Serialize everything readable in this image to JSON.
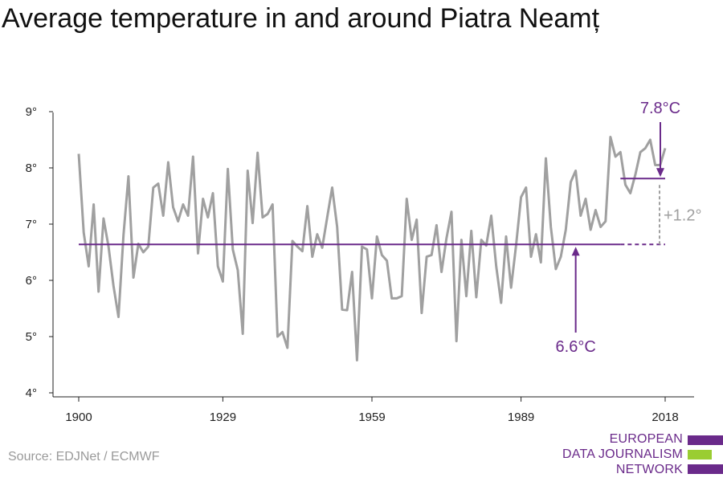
{
  "title": "Average temperature in and around Piatra Neamț",
  "source": "Source: EDJNet / ECMWF",
  "logo": {
    "lines": [
      "EUROPEAN",
      "DATA JOURNALISM",
      "NETWORK"
    ],
    "colors": [
      "#6a2a8a",
      "#9acd32",
      "#6a2a8a"
    ]
  },
  "colors": {
    "series": "#a0a0a0",
    "accent": "#6a2a8a",
    "diff": "#a0a0a0"
  },
  "chart_data": {
    "type": "line",
    "title": "Average temperature in and around Piatra Neamț",
    "xlabel": "",
    "ylabel": "",
    "xlim": [
      1900,
      2018
    ],
    "ylim": [
      4,
      9
    ],
    "x_ticks": [
      1900,
      1929,
      1959,
      1989,
      2018
    ],
    "y_ticks": [
      4,
      5,
      6,
      7,
      8,
      9
    ],
    "y_tick_labels": [
      "4°",
      "5°",
      "6°",
      "7°",
      "8°",
      "9°"
    ],
    "grid": false,
    "series": [
      {
        "x": [
          1900,
          1901,
          1902,
          1903,
          1904,
          1905,
          1906,
          1907,
          1908,
          1909,
          1910,
          1911,
          1912,
          1913,
          1914,
          1915,
          1916,
          1917,
          1918,
          1919,
          1920,
          1921,
          1922,
          1923,
          1924,
          1925,
          1926,
          1927,
          1928,
          1929,
          1930,
          1931,
          1932,
          1933,
          1934,
          1935,
          1936,
          1937,
          1938,
          1939,
          1940,
          1941,
          1942,
          1943,
          1944,
          1945,
          1946,
          1947,
          1948,
          1949,
          1950,
          1951,
          1952,
          1953,
          1954,
          1955,
          1956,
          1957,
          1958,
          1959,
          1960,
          1961,
          1962,
          1963,
          1964,
          1965,
          1966,
          1967,
          1968,
          1969,
          1970,
          1971,
          1972,
          1973,
          1974,
          1975,
          1976,
          1977,
          1978,
          1979,
          1980,
          1981,
          1982,
          1983,
          1984,
          1985,
          1986,
          1987,
          1988,
          1989,
          1990,
          1991,
          1992,
          1993,
          1994,
          1995,
          1996,
          1997,
          1998,
          1999,
          2000,
          2001,
          2002,
          2003,
          2004,
          2005,
          2006,
          2007,
          2008,
          2009,
          2010,
          2011,
          2012,
          2013,
          2014,
          2015,
          2016,
          2017,
          2018
        ],
        "y": [
          8.25,
          6.85,
          6.25,
          7.35,
          5.8,
          7.1,
          6.6,
          5.9,
          5.35,
          6.8,
          7.85,
          6.05,
          6.65,
          6.5,
          6.6,
          7.65,
          7.72,
          7.15,
          8.1,
          7.3,
          7.05,
          7.35,
          7.15,
          8.2,
          6.48,
          7.45,
          7.12,
          7.55,
          6.25,
          5.98,
          7.98,
          6.55,
          6.18,
          5.05,
          7.95,
          7.02,
          8.27,
          7.12,
          7.18,
          7.35,
          5.0,
          5.08,
          4.8,
          6.7,
          6.6,
          6.52,
          7.32,
          6.42,
          6.82,
          6.58,
          7.12,
          7.65,
          6.95,
          5.48,
          5.47,
          6.15,
          4.58,
          6.6,
          6.55,
          5.68,
          6.78,
          6.45,
          6.35,
          5.68,
          5.68,
          5.72,
          7.45,
          6.72,
          7.08,
          5.42,
          6.42,
          6.45,
          6.98,
          6.15,
          6.75,
          7.22,
          4.92,
          6.72,
          5.72,
          6.88,
          5.7,
          6.72,
          6.62,
          7.15,
          6.25,
          5.6,
          6.78,
          5.87,
          6.62,
          7.48,
          7.65,
          6.42,
          6.82,
          6.32,
          8.17,
          6.95,
          6.2,
          6.42,
          6.9,
          7.75,
          7.95,
          7.15,
          7.45,
          6.9,
          7.25,
          6.95,
          7.05,
          8.55,
          8.2,
          8.28,
          7.7,
          7.55,
          7.88,
          8.28,
          8.35,
          8.5,
          8.05,
          8.05,
          8.35
        ]
      }
    ],
    "annotations": {
      "baseline_label": "6.6°C",
      "baseline_value": 6.64,
      "baseline_x": [
        1900,
        2018
      ],
      "recent_label": "7.8°C",
      "recent_value": 7.81,
      "recent_x": [
        2009,
        2018
      ],
      "diff_label": "+1.2°",
      "baseline_arrow_x": 2000,
      "recent_arrow_x": 2018
    }
  }
}
